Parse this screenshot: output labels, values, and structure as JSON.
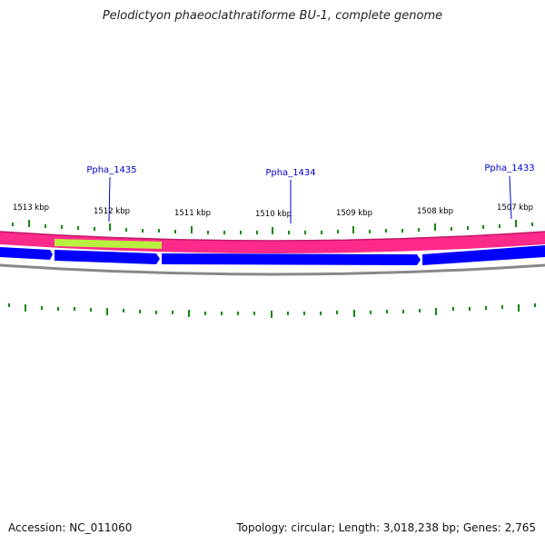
{
  "title": "Pelodictyon phaeoclathratiforme BU-1, complete genome",
  "accession": "Accession: NC_011060",
  "stats": "Topology: circular; Length: 3,018,238 bp; Genes: 2,765",
  "colors": {
    "gc_skew": "#ff2a8a",
    "gc_highlight": "#b8f040",
    "gene_arrow": "#0000ff",
    "backbone": "#888888",
    "tick": "#118811",
    "gene_label": "#0000cc",
    "kbp_label": "#000000"
  },
  "kbp_labels": [
    "1513 kbp",
    "1512 kbp",
    "1511 kbp",
    "1510 kbp",
    "1509 kbp",
    "1508 kbp",
    "1507 kbp"
  ],
  "gene_labels": [
    {
      "name": "Ppha_1435"
    },
    {
      "name": "Ppha_1434"
    },
    {
      "name": "Ppha_1433"
    }
  ]
}
